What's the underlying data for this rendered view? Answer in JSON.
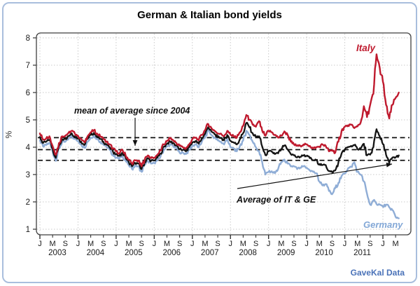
{
  "title": "German & Italian bond yields",
  "y_axis_label": "%",
  "annotations": {
    "mean_note": "mean of average since 2004",
    "average_label": "Average of IT & GE",
    "italy_label": "Italy",
    "germany_label": "Germany"
  },
  "watermark": "GaveKal Data",
  "colors": {
    "italy": "#bf1a2e",
    "germany": "#8fadd6",
    "average": "#141414",
    "watermark_blue": "#4a72b8",
    "panel_border": "#a9bedd",
    "grid": "#c9c9c9",
    "frame": "#3f3f3f"
  },
  "chart_data": {
    "type": "line",
    "x_start": "2003-01",
    "x_end": "2012-06",
    "x_tick_months": [
      "Jan",
      "May",
      "Sep"
    ],
    "month_ticks": [
      "J",
      "M",
      "S",
      "J",
      "M",
      "S",
      "J",
      "M",
      "S",
      "J",
      "M",
      "S",
      "J",
      "M",
      "S",
      "J",
      "M",
      "S",
      "J",
      "M",
      "S",
      "J",
      "M",
      "S",
      "J",
      "M",
      "S",
      "J",
      "M"
    ],
    "years": [
      "2003",
      "2004",
      "2005",
      "2006",
      "2007",
      "2008",
      "2009",
      "2010",
      "2011"
    ],
    "y_ticks": [
      1,
      2,
      3,
      4,
      5,
      6,
      7,
      8
    ],
    "ylim": [
      1,
      8
    ],
    "ylabel": "%",
    "grid": "dotted yearly vertical and integer horizontal",
    "reference_lines": {
      "label": "mean of average since 2004",
      "values": [
        4.35,
        3.91,
        3.52
      ]
    },
    "series": [
      {
        "name": "Italy",
        "color": "#bf1a2e",
        "values": [
          4.5,
          4.28,
          4.33,
          4.4,
          4.05,
          3.72,
          4.15,
          4.4,
          4.42,
          4.52,
          4.6,
          4.5,
          4.42,
          4.3,
          4.18,
          4.4,
          4.55,
          4.62,
          4.5,
          4.4,
          4.3,
          4.2,
          4.1,
          3.95,
          3.85,
          3.78,
          3.9,
          3.7,
          3.55,
          3.4,
          3.52,
          3.5,
          3.3,
          3.55,
          3.7,
          3.6,
          3.62,
          3.72,
          3.88,
          4.1,
          4.22,
          4.32,
          4.25,
          4.15,
          4.05,
          4.0,
          3.95,
          4.1,
          4.3,
          4.35,
          4.25,
          4.45,
          4.62,
          4.85,
          4.7,
          4.6,
          4.5,
          4.5,
          4.4,
          4.6,
          4.45,
          4.4,
          4.35,
          4.55,
          4.78,
          5.18,
          5.0,
          4.82,
          4.75,
          4.95,
          4.6,
          4.42,
          4.6,
          4.55,
          4.45,
          4.35,
          4.42,
          4.58,
          4.45,
          4.2,
          4.1,
          4.05,
          4.05,
          4.1,
          4.1,
          4.05,
          3.95,
          4.0,
          4.02,
          4.1,
          4.05,
          3.85,
          3.9,
          3.8,
          4.2,
          4.6,
          4.75,
          4.8,
          4.82,
          4.7,
          4.76,
          4.9,
          5.5,
          5.1,
          5.55,
          5.95,
          7.4,
          6.9,
          6.4,
          5.55,
          5.05,
          5.55,
          5.8,
          6.0
        ]
      },
      {
        "name": "Germany",
        "color": "#8fadd6",
        "values": [
          4.25,
          4.03,
          4.08,
          4.15,
          3.85,
          3.5,
          3.95,
          4.18,
          4.2,
          4.3,
          4.42,
          4.3,
          4.22,
          4.1,
          3.98,
          4.2,
          4.35,
          4.42,
          4.3,
          4.2,
          4.1,
          4.0,
          3.9,
          3.72,
          3.62,
          3.58,
          3.7,
          3.5,
          3.35,
          3.2,
          3.32,
          3.3,
          3.1,
          3.35,
          3.5,
          3.4,
          3.42,
          3.52,
          3.66,
          3.92,
          4.02,
          4.1,
          4.05,
          3.95,
          3.8,
          3.8,
          3.75,
          3.9,
          4.05,
          4.1,
          4.0,
          4.2,
          4.35,
          4.62,
          4.45,
          4.35,
          4.25,
          4.2,
          4.1,
          4.3,
          4.0,
          3.95,
          3.85,
          4.05,
          4.25,
          4.6,
          4.45,
          4.2,
          4.0,
          3.85,
          3.45,
          3.0,
          3.1,
          3.12,
          3.05,
          3.2,
          3.45,
          3.55,
          3.4,
          3.3,
          3.3,
          3.2,
          3.25,
          3.3,
          3.25,
          3.15,
          3.1,
          3.05,
          2.75,
          2.6,
          2.65,
          2.4,
          2.28,
          2.5,
          2.7,
          2.95,
          3.05,
          3.22,
          3.28,
          3.45,
          3.1,
          3.0,
          2.75,
          2.3,
          1.9,
          2.05,
          1.92,
          1.9,
          1.82,
          1.9,
          1.8,
          1.7,
          1.45,
          1.4
        ]
      },
      {
        "name": "Average of IT & GE",
        "color": "#141414",
        "derived": "mean of Italy and Germany"
      }
    ]
  }
}
